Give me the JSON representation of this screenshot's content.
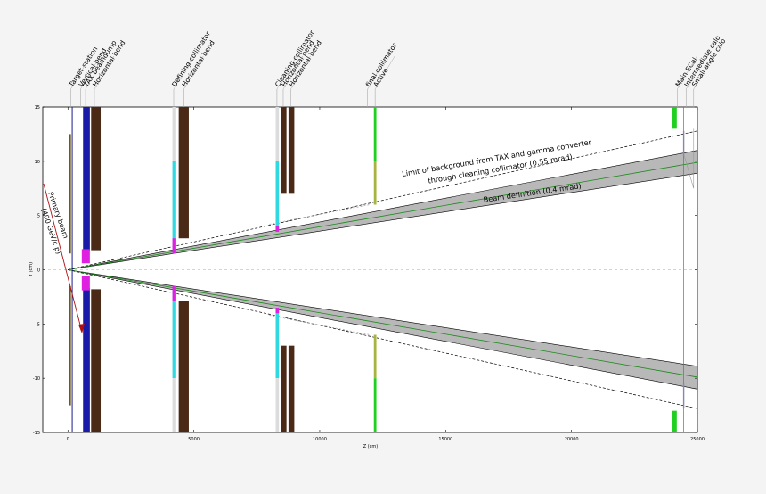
{
  "axes": {
    "xlabel": "Z (cm)",
    "ylabel": "Y (cm)",
    "xlim": [
      -1000,
      25000
    ],
    "ylim": [
      -15,
      15
    ],
    "xticks": [
      "0",
      "5000",
      "10000",
      "15000",
      "20000",
      "25000"
    ],
    "yticks": [
      "15",
      "10",
      "5",
      "0",
      "-5",
      "-10",
      "-15"
    ]
  },
  "component_labels": [
    {
      "z": 110,
      "text": "Target station"
    },
    {
      "z": 500,
      "text": "Vertical bend"
    },
    {
      "z": 700,
      "text": "TAX beamdump"
    },
    {
      "z": 1050,
      "text": "Horizontal bend"
    },
    {
      "z": 4200,
      "text": "Defining collimator"
    },
    {
      "z": 4600,
      "text": "Horizontal bend"
    },
    {
      "z": 8300,
      "text": "Cleaning collimator"
    },
    {
      "z": 8550,
      "text": "Horizontal bend"
    },
    {
      "z": 8850,
      "text": "Horizontal bend"
    },
    {
      "z": 12200,
      "text": "Active"
    },
    {
      "z": 11900,
      "text": "final collimator"
    },
    {
      "z": 24200,
      "text": "Main ECal"
    },
    {
      "z": 24550,
      "text": "Intermediate calo"
    },
    {
      "z": 24850,
      "text": "Small angle calo"
    }
  ],
  "annotations": {
    "primary_beam": "Primary beam",
    "primary_beam_energy": "(400 GeV/c p)",
    "background_limit_line1": "Limit of background from TAX and gamma converter",
    "background_limit_line2": "through cleaning collimator (0.55 mrad)",
    "beam_definition": "Beam definition (0.4 mrad)"
  },
  "colors": {
    "target": "#1a1a8c",
    "vertical_bend": "#6b5a1e",
    "tax": "#1a1aa8",
    "bend": "#4a2a16",
    "collimator_jaw": "#30d8e0",
    "collimator_tip": "#e020e0",
    "collimator_gap": "#dcdcdc",
    "active_collimator": "#a8b440",
    "green_detector": "#20d020",
    "beam_envelope": "#b8b8b8",
    "beam_axis": "#1a8a1a"
  }
}
